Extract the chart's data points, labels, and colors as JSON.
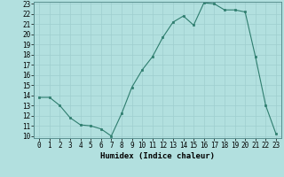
{
  "xlabel": "Humidex (Indice chaleur)",
  "x": [
    0,
    1,
    2,
    3,
    4,
    5,
    6,
    7,
    8,
    9,
    10,
    11,
    12,
    13,
    14,
    15,
    16,
    17,
    18,
    19,
    20,
    21,
    22,
    23
  ],
  "y": [
    13.8,
    13.8,
    13.0,
    11.8,
    11.1,
    11.0,
    10.7,
    10.0,
    12.2,
    14.8,
    16.5,
    17.8,
    19.7,
    21.2,
    21.8,
    20.9,
    23.1,
    23.0,
    22.4,
    22.4,
    22.2,
    17.8,
    13.0,
    10.2
  ],
  "ylim": [
    10,
    23
  ],
  "xlim": [
    -0.5,
    23.5
  ],
  "yticks": [
    10,
    11,
    12,
    13,
    14,
    15,
    16,
    17,
    18,
    19,
    20,
    21,
    22,
    23
  ],
  "xticks": [
    0,
    1,
    2,
    3,
    4,
    5,
    6,
    7,
    8,
    9,
    10,
    11,
    12,
    13,
    14,
    15,
    16,
    17,
    18,
    19,
    20,
    21,
    22,
    23
  ],
  "line_color": "#2e7d6e",
  "marker_color": "#2e7d6e",
  "bg_color": "#b2e0df",
  "grid_color": "#9ecece",
  "axis_label_fontsize": 6.5,
  "tick_fontsize": 5.5
}
